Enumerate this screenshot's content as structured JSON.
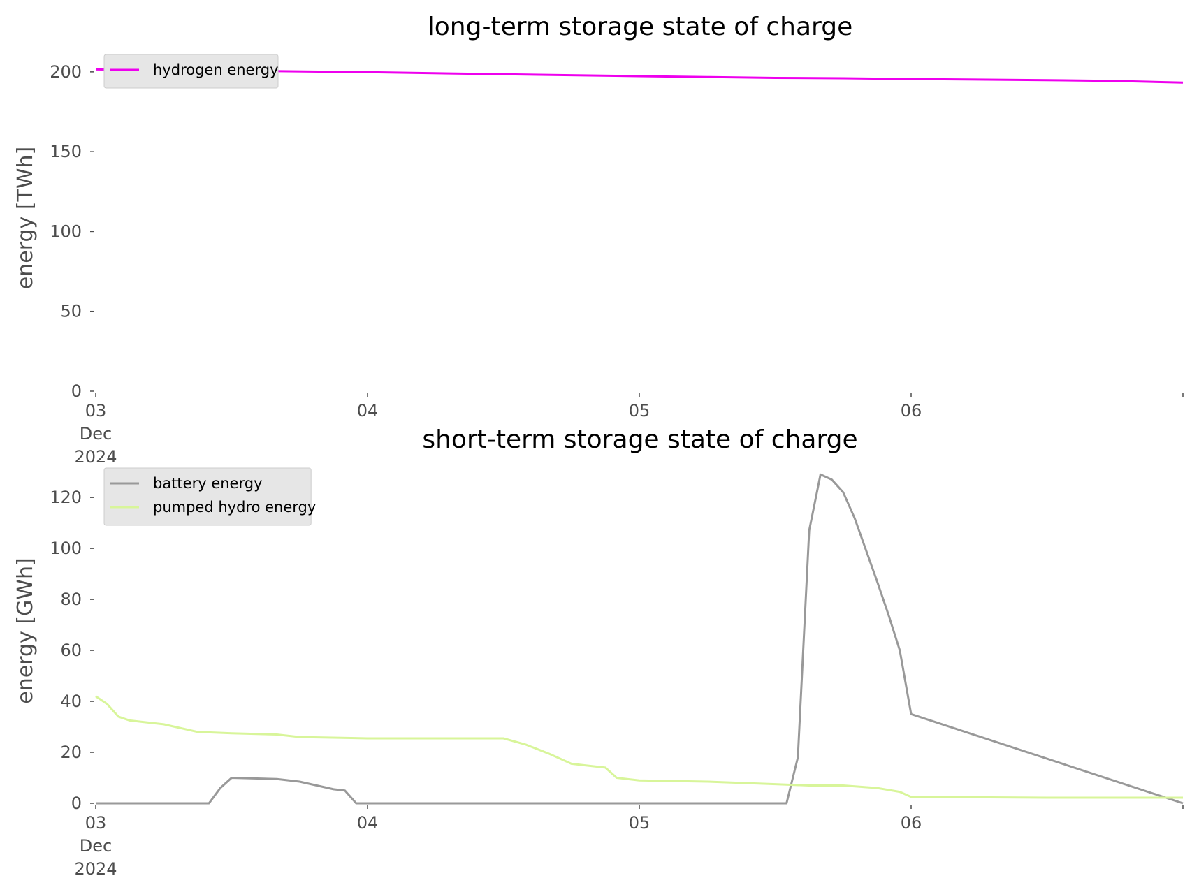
{
  "chart_data": [
    {
      "type": "line",
      "title": "long-term storage state of charge",
      "xlabel": "",
      "ylabel": "energy [TWh]",
      "xlim": [
        "2024-12-03 00:00",
        "2024-12-06 24:00"
      ],
      "ylim": [
        0,
        210
      ],
      "yticks": [
        0,
        50,
        100,
        150,
        200
      ],
      "xticks": [
        {
          "at": "2024-12-03",
          "lines": [
            "03",
            "Dec",
            "2024"
          ]
        },
        {
          "at": "2024-12-04",
          "lines": [
            "04"
          ]
        },
        {
          "at": "2024-12-05",
          "lines": [
            "05"
          ]
        },
        {
          "at": "2024-12-06",
          "lines": [
            "06"
          ]
        }
      ],
      "grid": false,
      "legend": "upper-left",
      "series": [
        {
          "name": "hydrogen energy",
          "color": "#ee00ee",
          "x": [
            "2024-12-03 00:00",
            "2024-12-03 12:00",
            "2024-12-04 00:00",
            "2024-12-04 12:00",
            "2024-12-05 00:00",
            "2024-12-05 06:00",
            "2024-12-05 12:00",
            "2024-12-05 18:00",
            "2024-12-06 00:00",
            "2024-12-06 12:00",
            "2024-12-06 18:00",
            "2024-12-07 00:00"
          ],
          "values": [
            201.5,
            200.8,
            199.8,
            198.5,
            197.3,
            196.8,
            196.2,
            196.0,
            195.5,
            194.8,
            194.3,
            193.3
          ]
        }
      ]
    },
    {
      "type": "line",
      "title": "short-term storage state of charge",
      "xlabel": "",
      "ylabel": "energy [GWh]",
      "xlim": [
        "2024-12-03 00:00",
        "2024-12-06 24:00"
      ],
      "ylim": [
        0,
        131
      ],
      "yticks": [
        0,
        20,
        40,
        60,
        80,
        100,
        120
      ],
      "xticks": [
        {
          "at": "2024-12-03",
          "lines": [
            "03",
            "Dec",
            "2024"
          ]
        },
        {
          "at": "2024-12-04",
          "lines": [
            "04"
          ]
        },
        {
          "at": "2024-12-05",
          "lines": [
            "05"
          ]
        },
        {
          "at": "2024-12-06",
          "lines": [
            "06"
          ]
        }
      ],
      "grid": false,
      "legend": "upper-left",
      "series": [
        {
          "name": "battery energy",
          "color": "#999999",
          "x": [
            "2024-12-03 00:00",
            "2024-12-03 10:00",
            "2024-12-03 11:00",
            "2024-12-03 12:00",
            "2024-12-03 16:00",
            "2024-12-03 18:00",
            "2024-12-03 19:00",
            "2024-12-03 21:00",
            "2024-12-03 22:00",
            "2024-12-03 23:00",
            "2024-12-04 00:00",
            "2024-12-05 13:00",
            "2024-12-05 14:00",
            "2024-12-05 15:00",
            "2024-12-05 16:00",
            "2024-12-05 17:00",
            "2024-12-05 18:00",
            "2024-12-05 19:00",
            "2024-12-05 21:00",
            "2024-12-05 22:00",
            "2024-12-05 23:00",
            "2024-12-06 00:00",
            "2024-12-07 00:00"
          ],
          "values": [
            0,
            0,
            6,
            10,
            9.5,
            8.5,
            7.5,
            5.5,
            5,
            0,
            0,
            0,
            18,
            107,
            129,
            127,
            122,
            112,
            87,
            74,
            60,
            35,
            0
          ]
        },
        {
          "name": "pumped hydro energy",
          "color": "#d8f59a",
          "x": [
            "2024-12-03 00:00",
            "2024-12-03 01:00",
            "2024-12-03 02:00",
            "2024-12-03 03:00",
            "2024-12-03 04:00",
            "2024-12-03 06:00",
            "2024-12-03 09:00",
            "2024-12-03 12:00",
            "2024-12-03 16:00",
            "2024-12-03 18:00",
            "2024-12-04 00:00",
            "2024-12-04 12:00",
            "2024-12-04 14:00",
            "2024-12-04 16:00",
            "2024-12-04 18:00",
            "2024-12-04 19:00",
            "2024-12-04 21:00",
            "2024-12-04 22:00",
            "2024-12-04 24:00",
            "2024-12-05 06:00",
            "2024-12-05 12:00",
            "2024-12-05 15:00",
            "2024-12-05 18:00",
            "2024-12-05 21:00",
            "2024-12-05 23:00",
            "2024-12-06 00:00",
            "2024-12-06 12:00",
            "2024-12-07 00:00"
          ],
          "values": [
            42,
            39,
            34,
            32.5,
            32,
            31,
            28,
            27.5,
            27,
            26,
            25.5,
            25.5,
            23,
            19.5,
            15.5,
            15,
            14,
            10,
            9,
            8.5,
            7.5,
            7,
            7,
            6,
            4.5,
            2.5,
            2.2,
            2.2
          ]
        }
      ]
    }
  ]
}
